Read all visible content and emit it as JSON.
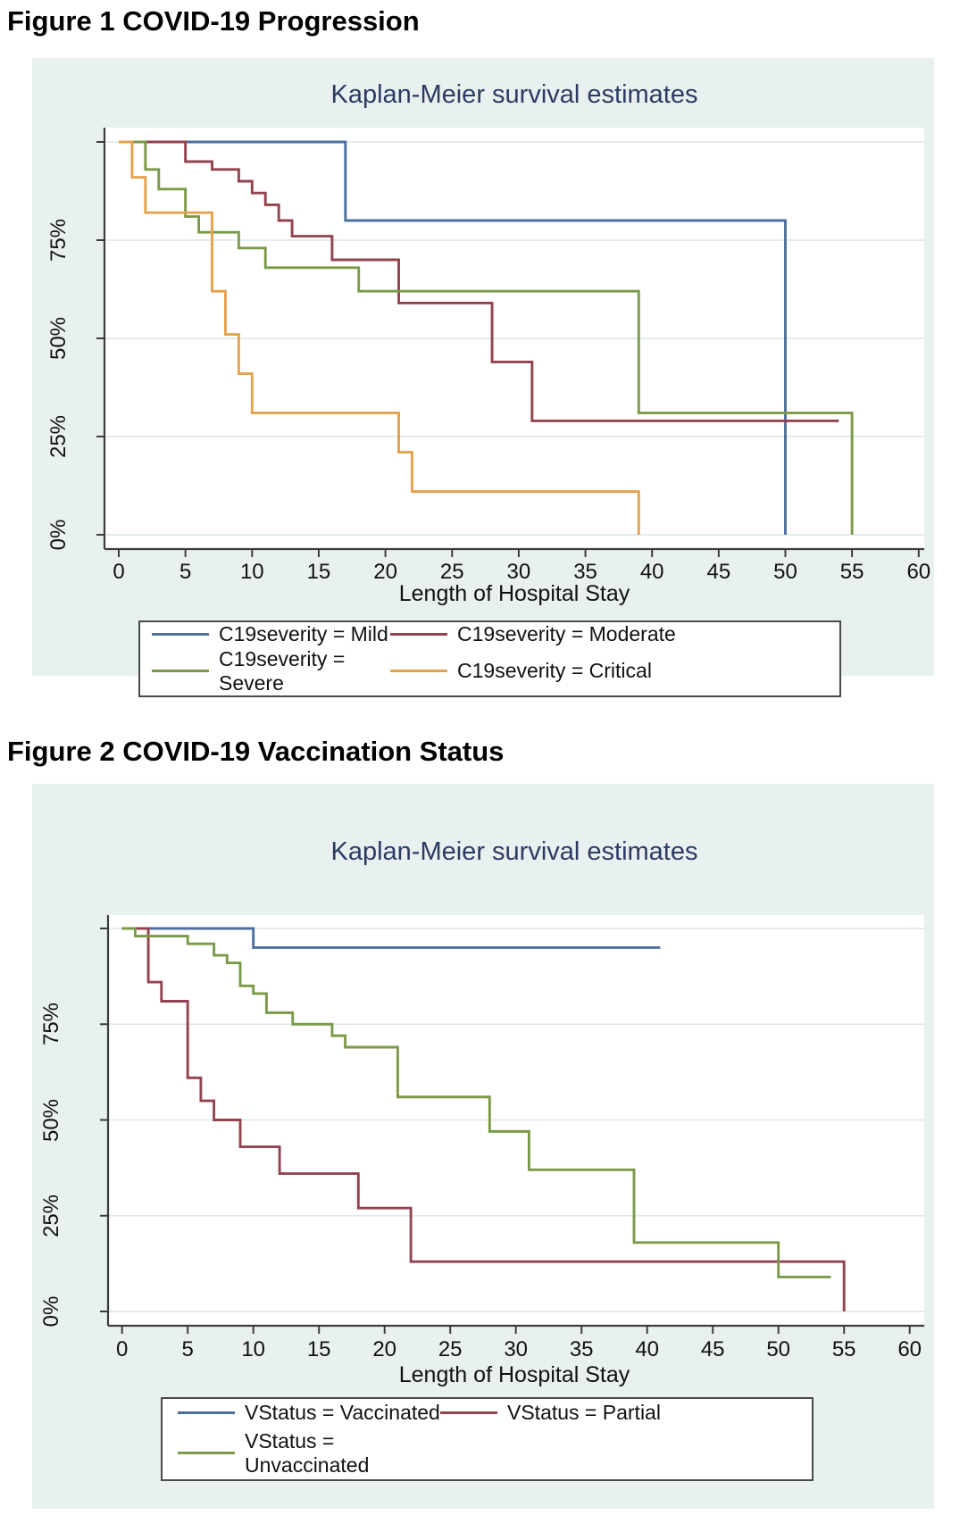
{
  "figure1": {
    "caption": "Figure 1 COVID-19 Progression"
  },
  "figure2": {
    "caption": "Figure 2 COVID-19 Vaccination Status"
  },
  "colors": {
    "card_background": "#e9f0f0",
    "plot_background": "#ffffff",
    "gridline": "#dfeaec",
    "axis": "#3d3d3d",
    "title_text": "#2d3a62",
    "blue": "#4e6f9d",
    "maroon": "#93434d",
    "green": "#7a9a49",
    "orange": "#e4a14e"
  },
  "chart_data": [
    {
      "type": "line",
      "subtype": "kaplan-meier-step",
      "title": "Kaplan-Meier survival estimates",
      "xlabel": "Length of Hospital Stay",
      "ylabel": "",
      "xlim": [
        0,
        60
      ],
      "ylim": [
        0,
        100
      ],
      "grid": true,
      "legend_position": "bottom",
      "x_ticks": [
        0,
        5,
        10,
        15,
        20,
        25,
        30,
        35,
        40,
        45,
        50,
        55,
        60
      ],
      "y_grid_values": [
        0,
        25,
        50,
        75,
        100
      ],
      "y_ticks": [
        {
          "value": 0,
          "label": "0%"
        },
        {
          "value": 25,
          "label": "25%"
        },
        {
          "value": 50,
          "label": "50%"
        },
        {
          "value": 75,
          "label": "75%"
        }
      ],
      "series": [
        {
          "name": "C19severity = Mild",
          "color": "#4e6f9d",
          "steps": [
            [
              0,
              100
            ],
            [
              17,
              80
            ],
            [
              50,
              0
            ]
          ],
          "end_x": 50
        },
        {
          "name": "C19severity = Moderate",
          "color": "#93434d",
          "steps": [
            [
              0,
              100
            ],
            [
              5,
              95
            ],
            [
              7,
              93
            ],
            [
              9,
              90
            ],
            [
              10,
              87
            ],
            [
              11,
              84
            ],
            [
              12,
              80
            ],
            [
              13,
              76
            ],
            [
              16,
              70
            ],
            [
              21,
              59
            ],
            [
              28,
              44
            ],
            [
              31,
              29
            ]
          ],
          "end_x": 54
        },
        {
          "name": "C19severity = Severe",
          "color": "#7a9a49",
          "steps": [
            [
              0,
              100
            ],
            [
              2,
              93
            ],
            [
              3,
              88
            ],
            [
              5,
              81
            ],
            [
              6,
              77
            ],
            [
              9,
              73
            ],
            [
              11,
              68
            ],
            [
              18,
              62
            ],
            [
              39,
              31
            ],
            [
              55,
              0
            ]
          ],
          "end_x": 55
        },
        {
          "name": "C19severity = Critical",
          "color": "#e4a14e",
          "steps": [
            [
              0,
              100
            ],
            [
              1,
              91
            ],
            [
              2,
              82
            ],
            [
              7,
              62
            ],
            [
              8,
              51
            ],
            [
              9,
              41
            ],
            [
              10,
              31
            ],
            [
              21,
              21
            ],
            [
              22,
              11
            ],
            [
              39,
              0
            ]
          ],
          "end_x": 39
        }
      ]
    },
    {
      "type": "line",
      "subtype": "kaplan-meier-step",
      "title": "Kaplan-Meier survival estimates",
      "xlabel": "Length of Hospital Stay",
      "ylabel": "",
      "xlim": [
        0,
        60
      ],
      "ylim": [
        0,
        100
      ],
      "grid": true,
      "legend_position": "bottom",
      "x_ticks": [
        0,
        5,
        10,
        15,
        20,
        25,
        30,
        35,
        40,
        45,
        50,
        55,
        60
      ],
      "y_grid_values": [
        0,
        25,
        50,
        75,
        100
      ],
      "y_ticks": [
        {
          "value": 0,
          "label": "0%"
        },
        {
          "value": 25,
          "label": "25%"
        },
        {
          "value": 50,
          "label": "50%"
        },
        {
          "value": 75,
          "label": "75%"
        }
      ],
      "series": [
        {
          "name": "VStatus = Vaccinated",
          "color": "#4e6f9d",
          "steps": [
            [
              0,
              100
            ],
            [
              10,
              95
            ]
          ],
          "end_x": 41
        },
        {
          "name": "VStatus = Partial",
          "color": "#93434d",
          "steps": [
            [
              0,
              100
            ],
            [
              2,
              86
            ],
            [
              3,
              81
            ],
            [
              5,
              61
            ],
            [
              6,
              55
            ],
            [
              7,
              50
            ],
            [
              9,
              43
            ],
            [
              12,
              36
            ],
            [
              18,
              27
            ],
            [
              22,
              13
            ],
            [
              55,
              0
            ]
          ],
          "end_x": 55
        },
        {
          "name": "VStatus = Unvaccinated",
          "color": "#7a9a49",
          "steps": [
            [
              0,
              100
            ],
            [
              1,
              98
            ],
            [
              5,
              96
            ],
            [
              7,
              93
            ],
            [
              8,
              91
            ],
            [
              9,
              85
            ],
            [
              10,
              83
            ],
            [
              11,
              78
            ],
            [
              13,
              75
            ],
            [
              16,
              72
            ],
            [
              17,
              69
            ],
            [
              21,
              56
            ],
            [
              28,
              47
            ],
            [
              31,
              37
            ],
            [
              39,
              18
            ],
            [
              50,
              9
            ]
          ],
          "end_x": 54
        }
      ]
    }
  ]
}
